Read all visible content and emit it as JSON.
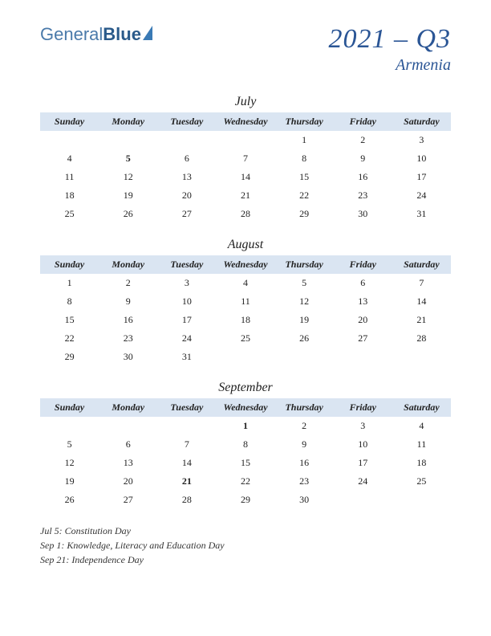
{
  "logo": {
    "part1": "General",
    "part2": "Blue"
  },
  "title": {
    "quarter": "2021 – Q3",
    "country": "Armenia"
  },
  "day_headers": [
    "Sunday",
    "Monday",
    "Tuesday",
    "Wednesday",
    "Thursday",
    "Friday",
    "Saturday"
  ],
  "header_bg": "#dae5f2",
  "title_color": "#2a5595",
  "holiday_color": "#c02020",
  "months": [
    {
      "name": "July",
      "weeks": [
        [
          "",
          "",
          "",
          "",
          "1",
          "2",
          "3"
        ],
        [
          "4",
          "5",
          "6",
          "7",
          "8",
          "9",
          "10"
        ],
        [
          "11",
          "12",
          "13",
          "14",
          "15",
          "16",
          "17"
        ],
        [
          "18",
          "19",
          "20",
          "21",
          "22",
          "23",
          "24"
        ],
        [
          "25",
          "26",
          "27",
          "28",
          "29",
          "30",
          "31"
        ]
      ],
      "holidays": [
        "5"
      ]
    },
    {
      "name": "August",
      "weeks": [
        [
          "1",
          "2",
          "3",
          "4",
          "5",
          "6",
          "7"
        ],
        [
          "8",
          "9",
          "10",
          "11",
          "12",
          "13",
          "14"
        ],
        [
          "15",
          "16",
          "17",
          "18",
          "19",
          "20",
          "21"
        ],
        [
          "22",
          "23",
          "24",
          "25",
          "26",
          "27",
          "28"
        ],
        [
          "29",
          "30",
          "31",
          "",
          "",
          "",
          ""
        ]
      ],
      "holidays": []
    },
    {
      "name": "September",
      "weeks": [
        [
          "",
          "",
          "",
          "1",
          "2",
          "3",
          "4"
        ],
        [
          "5",
          "6",
          "7",
          "8",
          "9",
          "10",
          "11"
        ],
        [
          "12",
          "13",
          "14",
          "15",
          "16",
          "17",
          "18"
        ],
        [
          "19",
          "20",
          "21",
          "22",
          "23",
          "24",
          "25"
        ],
        [
          "26",
          "27",
          "28",
          "29",
          "30",
          "",
          ""
        ]
      ],
      "holidays": [
        "1",
        "21"
      ]
    }
  ],
  "holiday_notes": [
    "Jul 5: Constitution Day",
    "Sep 1: Knowledge, Literacy and Education Day",
    "Sep 21: Independence Day"
  ]
}
